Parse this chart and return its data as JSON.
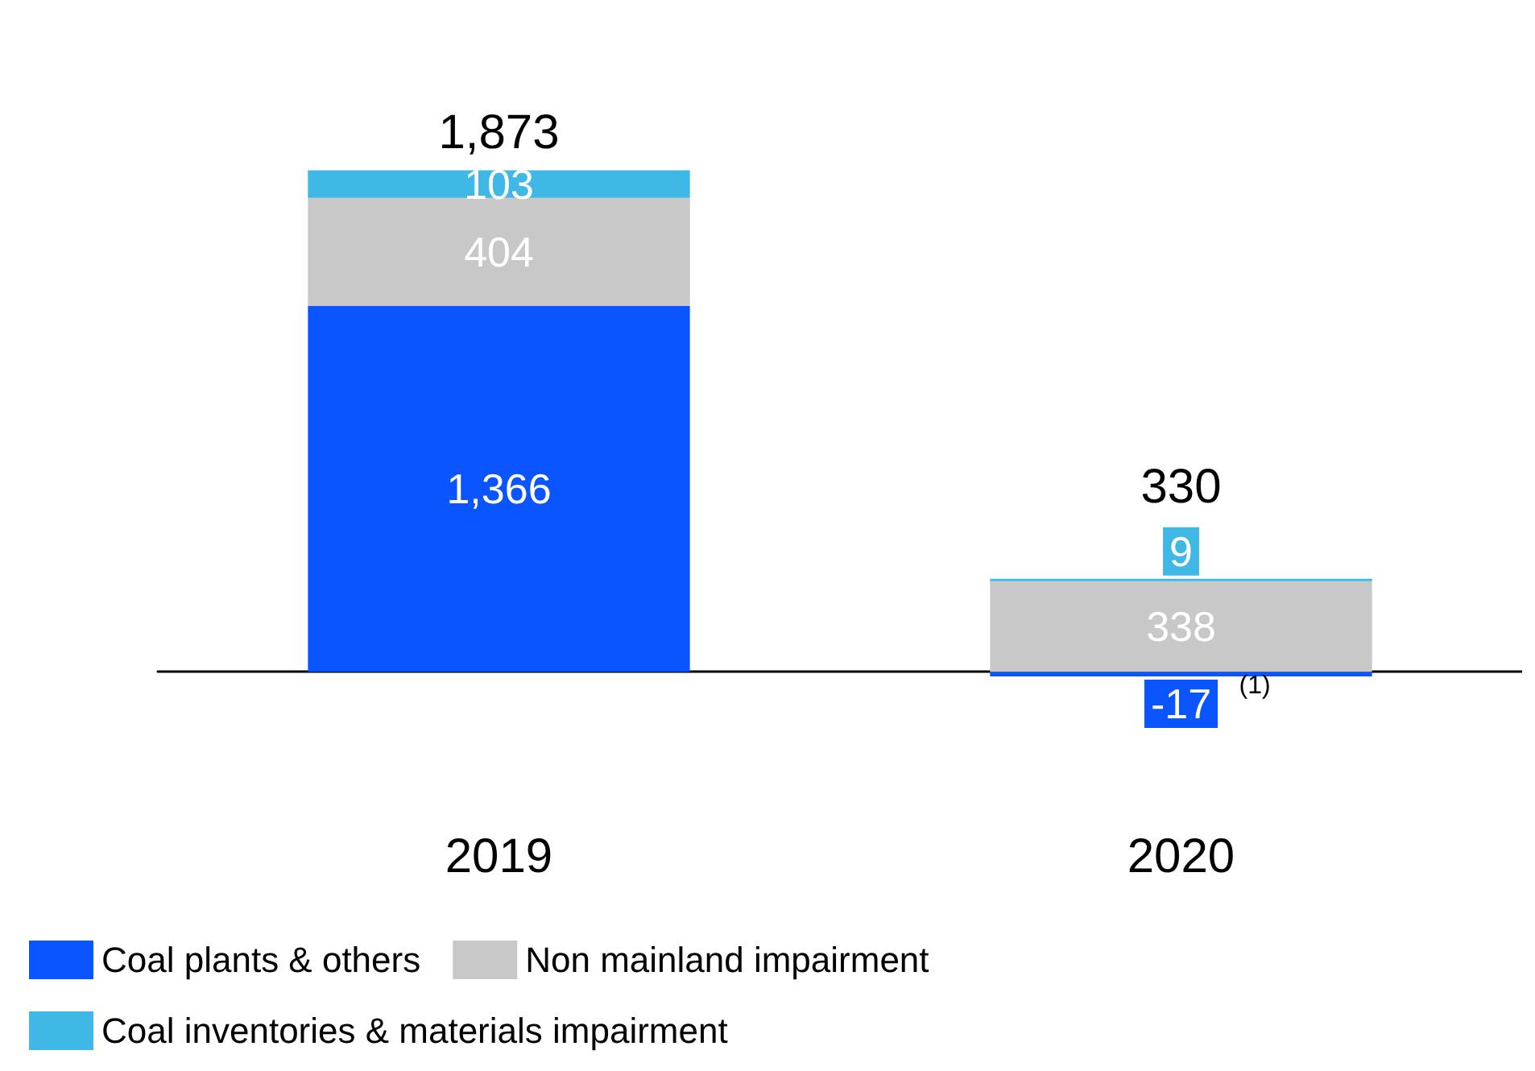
{
  "chart_data": {
    "type": "bar",
    "stacked": true,
    "categories": [
      "2019",
      "2020"
    ],
    "series": [
      {
        "name": "Coal plants & others",
        "color": "#0a55ff",
        "values": [
          1366,
          -17
        ],
        "value_labels": [
          "1,366",
          "-17"
        ]
      },
      {
        "name": "Non mainland impairment",
        "color": "#c8c8c8",
        "values": [
          404,
          338
        ],
        "value_labels": [
          "404",
          "338"
        ]
      },
      {
        "name": "Coal inventories & materials impairment",
        "color": "#40b8e6",
        "values": [
          103,
          9
        ],
        "value_labels": [
          "103",
          "9"
        ]
      }
    ],
    "data_labels": true,
    "totals": [
      "1,873",
      "330"
    ],
    "annotations": [
      {
        "text": "(1)",
        "x": "2020",
        "y": -17
      }
    ],
    "legend": "bottom",
    "grid": false
  }
}
